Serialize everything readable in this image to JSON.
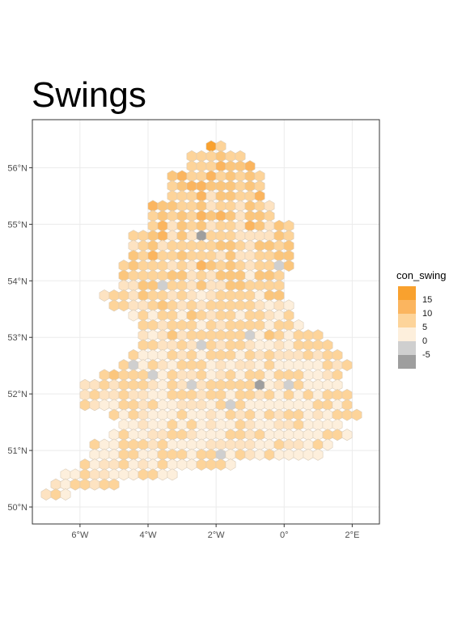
{
  "title": "Swings",
  "chart_data": {
    "type": "hex-map",
    "fill_variable": "con_swing",
    "x_ticks": [
      {
        "value": -6,
        "label": "6°W"
      },
      {
        "value": -4,
        "label": "4°W"
      },
      {
        "value": -2,
        "label": "2°W"
      },
      {
        "value": 0,
        "label": "0°"
      },
      {
        "value": 2,
        "label": "2°E"
      }
    ],
    "y_ticks": [
      {
        "value": 50,
        "label": "50°N"
      },
      {
        "value": 51,
        "label": "51°N"
      },
      {
        "value": 52,
        "label": "52°N"
      },
      {
        "value": 53,
        "label": "53°N"
      },
      {
        "value": 54,
        "label": "54°N"
      },
      {
        "value": 55,
        "label": "55°N"
      },
      {
        "value": 56,
        "label": "56°N"
      }
    ],
    "xlim": [
      -7.4,
      2.8
    ],
    "ylim": [
      49.7,
      56.85
    ],
    "grid": true,
    "legend": {
      "title": "con_swing",
      "position": "right",
      "bins": [
        {
          "label": "15",
          "color": "#f9a12e"
        },
        {
          "label": "10",
          "color": "#fbb55f"
        },
        {
          "label": "5",
          "color": "#fdd49a"
        },
        {
          "label": "0",
          "color": "#fdefdc"
        },
        {
          "label": "-5",
          "color": "#cfcfcf"
        },
        {
          "label": "",
          "color": "#9e9e9e"
        }
      ]
    }
  }
}
